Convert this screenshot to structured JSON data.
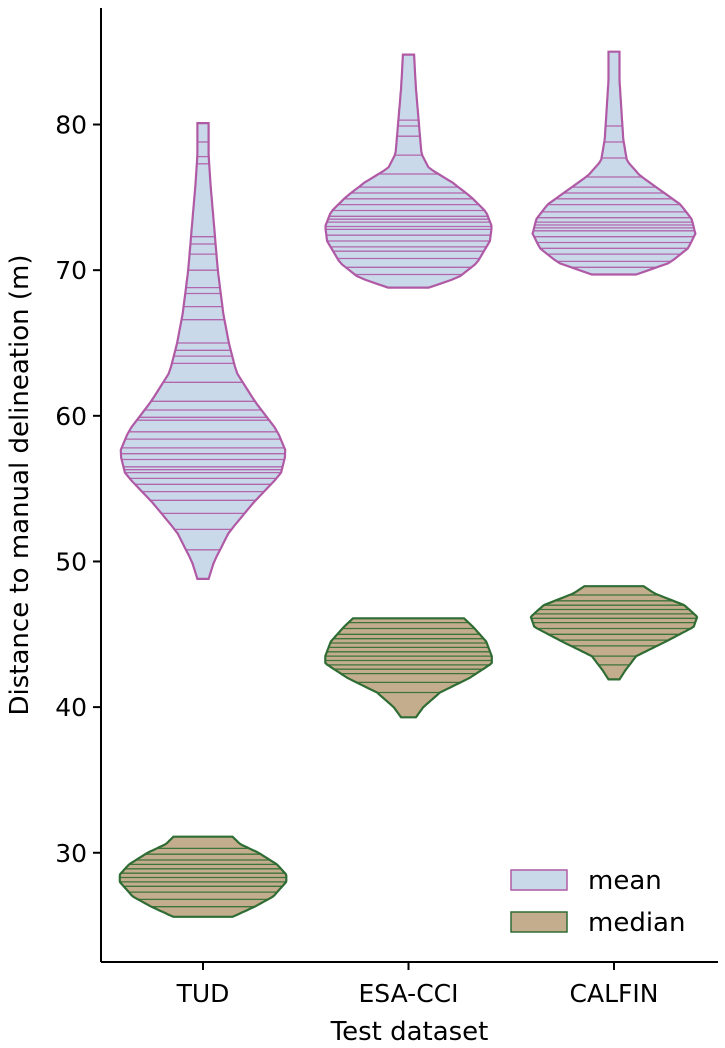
{
  "chart_data": {
    "type": "violin",
    "xlabel": "Test dataset",
    "ylabel": "Distance to manual delineation (m)",
    "categories": [
      "TUD",
      "ESA-CCI",
      "CALFIN"
    ],
    "ylim": [
      22.5,
      88
    ],
    "yticks": [
      30,
      40,
      50,
      60,
      70,
      80
    ],
    "grid": false,
    "legend_position": "bottom-right",
    "series": [
      {
        "name": "mean",
        "fill": "#c9d9ea",
        "edge": "#b05aa5",
        "violins": [
          {
            "category": "TUD",
            "profile": [
              [
                48.8,
                0.03
              ],
              [
                50,
                0.06
              ],
              [
                52,
                0.14
              ],
              [
                54,
                0.27
              ],
              [
                56,
                0.42
              ],
              [
                57.5,
                0.45
              ],
              [
                59,
                0.4
              ],
              [
                61,
                0.28
              ],
              [
                63,
                0.18
              ],
              [
                65,
                0.14
              ],
              [
                67,
                0.11
              ],
              [
                70,
                0.08
              ],
              [
                73,
                0.06
              ],
              [
                76,
                0.04
              ],
              [
                78,
                0.03
              ],
              [
                80.1,
                0.03
              ]
            ],
            "points": [
              50.8,
              52.2,
              53.3,
              54.2,
              54.8,
              55.3,
              55.7,
              56.1,
              56.3,
              56.5,
              57.0,
              57.4,
              57.8,
              58.4,
              58.9,
              59.7,
              59.9,
              60.4,
              61.0,
              62.3,
              63.6,
              64.1,
              64.5,
              65.0,
              66.6,
              67.5,
              68.4,
              68.8,
              70.0,
              71.1,
              71.8,
              72.3,
              77.3,
              77.8,
              78.8
            ]
          },
          {
            "category": "ESA-CCI",
            "profile": [
              [
                68.8,
                0.11
              ],
              [
                69.5,
                0.27
              ],
              [
                70.5,
                0.37
              ],
              [
                72,
                0.44
              ],
              [
                73,
                0.45
              ],
              [
                74,
                0.42
              ],
              [
                75,
                0.34
              ],
              [
                76,
                0.24
              ],
              [
                77,
                0.11
              ],
              [
                78,
                0.07
              ],
              [
                79.5,
                0.06
              ],
              [
                81,
                0.05
              ],
              [
                82.5,
                0.04
              ],
              [
                84.8,
                0.03
              ]
            ],
            "points": [
              69.7,
              70.2,
              70.8,
              71.3,
              71.6,
              72.0,
              72.4,
              72.8,
              73.0,
              73.3,
              73.5,
              73.7,
              74.1,
              74.5,
              74.9,
              75.3,
              75.7,
              76.6,
              77.9,
              79.2,
              79.9,
              80.3
            ]
          },
          {
            "category": "CALFIN",
            "profile": [
              [
                69.7,
                0.12
              ],
              [
                70.5,
                0.3
              ],
              [
                71.5,
                0.4
              ],
              [
                72.5,
                0.44
              ],
              [
                73.5,
                0.42
              ],
              [
                74.5,
                0.36
              ],
              [
                75.5,
                0.25
              ],
              [
                76.5,
                0.14
              ],
              [
                77.5,
                0.07
              ],
              [
                79,
                0.05
              ],
              [
                81,
                0.04
              ],
              [
                83,
                0.03
              ],
              [
                85,
                0.03
              ]
            ],
            "points": [
              70.2,
              70.6,
              71.1,
              71.5,
              71.9,
              72.3,
              72.7,
              72.9,
              73.1,
              73.3,
              73.6,
              74.0,
              74.5,
              74.9,
              75.3,
              75.7,
              76.4,
              77.7,
              78.8,
              79.9
            ]
          }
        ]
      },
      {
        "name": "median",
        "fill": "#c4ad8c",
        "edge": "#2f6d35",
        "violins": [
          {
            "category": "TUD",
            "profile": [
              [
                25.6,
                0.16
              ],
              [
                26.3,
                0.28
              ],
              [
                27,
                0.38
              ],
              [
                28,
                0.45
              ],
              [
                28.5,
                0.45
              ],
              [
                29.2,
                0.4
              ],
              [
                30,
                0.3
              ],
              [
                30.6,
                0.2
              ],
              [
                31.1,
                0.16
              ]
            ],
            "points": [
              26.3,
              26.8,
              27.3,
              27.7,
              28.0,
              28.3,
              28.6,
              28.9,
              29.2,
              29.5,
              29.9,
              30.3
            ]
          },
          {
            "category": "ESA-CCI",
            "profile": [
              [
                39.3,
                0.04
              ],
              [
                40,
                0.08
              ],
              [
                41,
                0.17
              ],
              [
                42,
                0.33
              ],
              [
                43,
                0.45
              ],
              [
                43.5,
                0.45
              ],
              [
                44.5,
                0.42
              ],
              [
                45.5,
                0.35
              ],
              [
                46.1,
                0.3
              ]
            ],
            "points": [
              41.0,
              41.7,
              42.3,
              42.6,
              42.9,
              43.2,
              43.5,
              43.8,
              44.1,
              44.4,
              44.7,
              45.0,
              45.4,
              45.8
            ]
          },
          {
            "category": "CALFIN",
            "profile": [
              [
                41.9,
                0.03
              ],
              [
                42.5,
                0.06
              ],
              [
                43.5,
                0.12
              ],
              [
                44.5,
                0.28
              ],
              [
                45.5,
                0.43
              ],
              [
                46.2,
                0.45
              ],
              [
                47,
                0.38
              ],
              [
                47.8,
                0.22
              ],
              [
                48.3,
                0.16
              ]
            ],
            "points": [
              42.9,
              43.5,
              44.2,
              44.6,
              45.0,
              45.4,
              45.8,
              46.1,
              46.4,
              46.7,
              47.0,
              47.3,
              47.7
            ]
          }
        ]
      }
    ]
  }
}
